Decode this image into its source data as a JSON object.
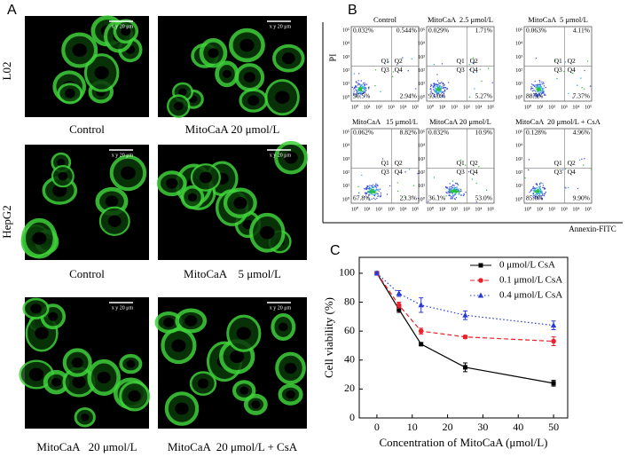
{
  "panel_a": {
    "label": "A",
    "row_labels": [
      "L02",
      "HepG2"
    ],
    "scale_bar": "x y 20 μm",
    "captions": [
      "Control",
      "MitoCaA 20 μmol/L",
      "Control",
      "MitoCaA    5 μmol/L",
      "MitoCaA   20 μmol/L",
      "MitoCaA  20 μmol/L + CsA"
    ]
  },
  "panel_b": {
    "label": "B",
    "y_label": "PI",
    "x_label": "Annexin-FITC",
    "ticks": [
      "10⁰",
      "10¹",
      "10²",
      "10³",
      "10⁴",
      "10⁵"
    ],
    "quadrants": [
      "Q1",
      "Q2",
      "Q3",
      "Q4"
    ],
    "plots": [
      {
        "title": "Control",
        "q1": "0.032%",
        "q2": "0.544%",
        "q3": "96.5%",
        "q4": "2.94%"
      },
      {
        "title": "MitoCaA  2.5 μmol/L",
        "q1": "0.029%",
        "q2": "1.71%",
        "q3": "93.0%",
        "q4": "5.27%"
      },
      {
        "title": "MitoCaA  5 μmol/L",
        "q1": "0.063%",
        "q2": "4.11%",
        "q3": "88.5%",
        "q4": "7.37%"
      },
      {
        "title": "MitoCaA   15 μmol/L",
        "q1": "0.062%",
        "q2": "8.82%",
        "q3": "67.8%",
        "q4": "23.3%"
      },
      {
        "title": "MitoCaA 20 μmol/L",
        "q1": "0.032%",
        "q2": "10.9%",
        "q3": "36.1%",
        "q4": "53.0%"
      },
      {
        "title": "MitoCaA  20 μmol/L + CsA",
        "q1": "0.128%",
        "q2": "4.96%",
        "q3": "85.0%",
        "q4": "9.90%"
      }
    ]
  },
  "chart_data": {
    "type": "line",
    "label": "C",
    "x_label": "Concentration of MitoCaA (μmol/L)",
    "y_label": "Cell viability (%)",
    "x": [
      0,
      6.25,
      12.5,
      25,
      50
    ],
    "series": [
      {
        "name": "0 μmol/L CsA",
        "color": "#000000",
        "dash": "solid",
        "marker": "square",
        "values": [
          100,
          75,
          51,
          35,
          24
        ],
        "errors": [
          1,
          2,
          1,
          3,
          2
        ]
      },
      {
        "name": "0.1 μmol/L CsA",
        "color": "#e8212b",
        "dash": "dashed",
        "marker": "circle",
        "values": [
          100,
          78,
          60,
          56,
          53
        ],
        "errors": [
          1,
          2,
          2,
          1,
          3
        ]
      },
      {
        "name": "0.4 μmol/L CsA",
        "color": "#2a3ad4",
        "dash": "dotted",
        "marker": "triangle",
        "values": [
          100,
          86,
          78,
          71,
          64
        ],
        "errors": [
          1,
          2,
          5,
          3,
          3
        ]
      }
    ],
    "xlim": [
      -5,
      54
    ],
    "ylim": [
      0,
      111
    ],
    "xticks": [
      0,
      10,
      20,
      30,
      40,
      50
    ],
    "yticks": [
      0,
      20,
      40,
      60,
      80,
      100
    ],
    "legend": "upper right"
  }
}
